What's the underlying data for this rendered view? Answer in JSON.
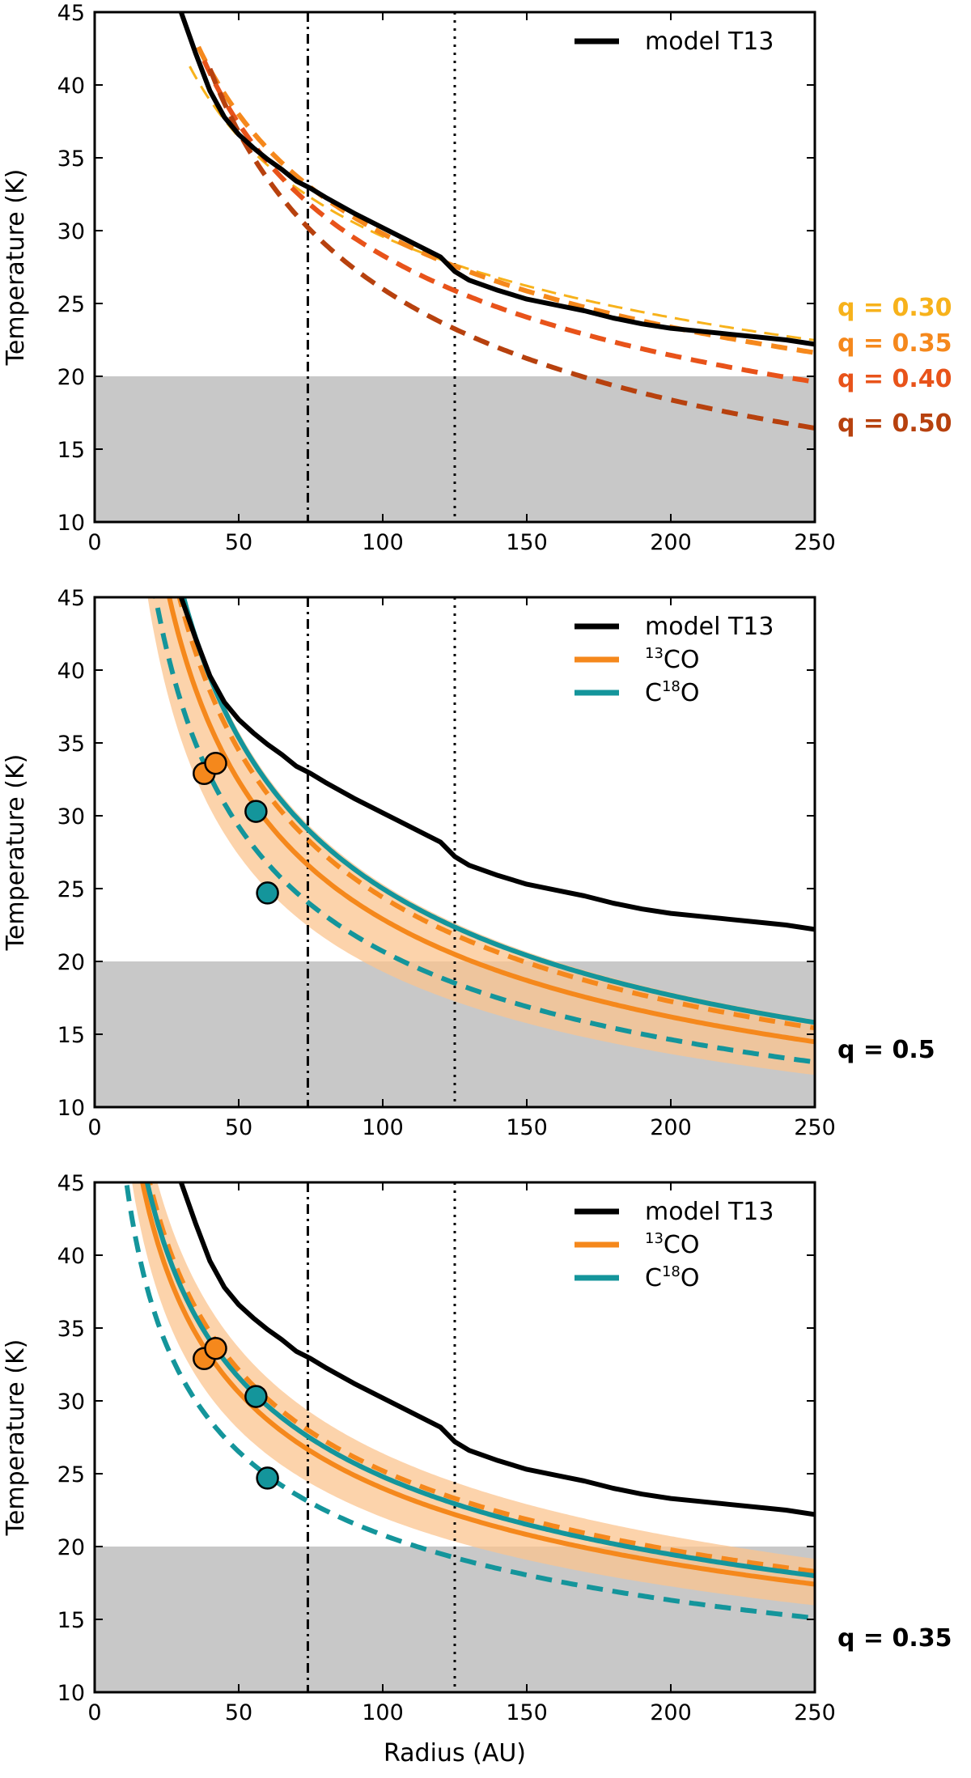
{
  "chart_data": [
    {
      "type": "line",
      "title": "",
      "xlabel": "",
      "ylabel": "Temperature (K)",
      "xlim": [
        0,
        250
      ],
      "ylim": [
        10,
        45
      ],
      "xticks": [
        0,
        50,
        100,
        150,
        200,
        250
      ],
      "yticks": [
        10,
        15,
        20,
        25,
        30,
        35,
        40,
        45
      ],
      "shaded_band": {
        "y_from": 10,
        "y_to": 20,
        "color": "#c8c8c8"
      },
      "vlines": [
        {
          "x": 74,
          "style": "dash-dot"
        },
        {
          "x": 125,
          "style": "dotted"
        }
      ],
      "model": {
        "name": "model T13",
        "color": "#000000",
        "x": [
          30,
          35,
          40,
          45,
          50,
          55,
          60,
          65,
          70,
          75,
          80,
          90,
          100,
          110,
          120,
          125,
          130,
          140,
          150,
          160,
          170,
          180,
          190,
          200,
          210,
          220,
          230,
          240,
          250
        ],
        "y": [
          45,
          42.2,
          39.6,
          37.8,
          36.6,
          35.7,
          34.9,
          34.2,
          33.4,
          32.9,
          32.3,
          31.2,
          30.2,
          29.2,
          28.2,
          27.2,
          26.6,
          25.9,
          25.3,
          24.9,
          24.5,
          24.0,
          23.6,
          23.3,
          23.1,
          22.9,
          22.7,
          22.5,
          22.2
        ]
      },
      "q_series": [
        {
          "name": "q = 0.30",
          "q": 0.3,
          "color": "#f7b21b",
          "T100": 29.6,
          "start": 33,
          "width": 3
        },
        {
          "name": "q = 0.35",
          "q": 0.35,
          "color": "#f5881c",
          "T100": 29.8,
          "start": 36,
          "width": 6
        },
        {
          "name": "q = 0.40",
          "q": 0.4,
          "color": "#e8531a",
          "T100": 28.3,
          "start": 38,
          "width": 6
        },
        {
          "name": "q = 0.50",
          "q": 0.5,
          "color": "#b7410e",
          "T100": 26.0,
          "start": 40,
          "width": 6
        }
      ],
      "legend": [
        "model T13"
      ],
      "legend_position": "top-right"
    },
    {
      "type": "line",
      "title": "",
      "xlabel": "",
      "ylabel": "Temperature (K)",
      "xlim": [
        0,
        250
      ],
      "ylim": [
        10,
        45
      ],
      "xticks": [
        0,
        50,
        100,
        150,
        200,
        250
      ],
      "yticks": [
        10,
        15,
        20,
        25,
        30,
        35,
        40,
        45
      ],
      "q_label": "q = 0.5",
      "q": 0.5,
      "legend": [
        {
          "name": "model T13",
          "iso_pre": "",
          "iso_sup": "",
          "iso_post": "model T13",
          "color": "#000000"
        },
        {
          "name": "13CO",
          "iso_pre": "",
          "iso_sup": "13",
          "iso_post": "CO",
          "color": "#f5881c"
        },
        {
          "name": "C18O",
          "iso_pre": "C",
          "iso_sup": "18",
          "iso_post": "O",
          "color": "#14959b"
        }
      ],
      "series": [
        {
          "name": "13CO fit",
          "color": "#f5881c",
          "style": "solid",
          "T100": 22.9
        },
        {
          "name": "13CO upper",
          "color": "#f5881c",
          "style": "dashed",
          "T100": 24.4
        },
        {
          "name": "C18O fit",
          "color": "#14959b",
          "style": "solid",
          "T100": 25.0
        },
        {
          "name": "C18O lower",
          "color": "#14959b",
          "style": "dashed",
          "T100": 20.7
        }
      ],
      "band": {
        "name": "13CO uncertainty",
        "color": "#fbc48f",
        "T100_low": 19.3,
        "T100_high": 25.3
      },
      "points": [
        {
          "x": 38,
          "y": 32.9,
          "color": "#f5881c"
        },
        {
          "x": 42,
          "y": 33.6,
          "color": "#f5881c"
        },
        {
          "x": 56,
          "y": 30.3,
          "color": "#14959b"
        },
        {
          "x": 60,
          "y": 24.7,
          "color": "#14959b"
        }
      ],
      "legend_position": "top-right"
    },
    {
      "type": "line",
      "title": "",
      "xlabel": "Radius (AU)",
      "ylabel": "Temperature (K)",
      "xlim": [
        0,
        250
      ],
      "ylim": [
        10,
        45
      ],
      "xticks": [
        0,
        50,
        100,
        150,
        200,
        250
      ],
      "yticks": [
        10,
        15,
        20,
        25,
        30,
        35,
        40,
        45
      ],
      "q_label": "q = 0.35",
      "q": 0.35,
      "legend": [
        {
          "name": "model T13",
          "iso_pre": "",
          "iso_sup": "",
          "iso_post": "model T13",
          "color": "#000000"
        },
        {
          "name": "13CO",
          "iso_pre": "",
          "iso_sup": "13",
          "iso_post": "CO",
          "color": "#f5881c"
        },
        {
          "name": "C18O",
          "iso_pre": "C",
          "iso_sup": "18",
          "iso_post": "O",
          "color": "#14959b"
        }
      ],
      "series": [
        {
          "name": "13CO fit",
          "color": "#f5881c",
          "style": "solid",
          "T100": 24.0
        },
        {
          "name": "13CO upper",
          "color": "#f5881c",
          "style": "dashed",
          "T100": 25.2
        },
        {
          "name": "C18O fit",
          "color": "#14959b",
          "style": "solid",
          "T100": 24.8
        },
        {
          "name": "C18O lower",
          "color": "#14959b",
          "style": "dashed",
          "T100": 20.8
        }
      ],
      "band": {
        "name": "13CO uncertainty",
        "color": "#fbc48f",
        "T100_low": 22.0,
        "T100_high": 26.4
      },
      "points": [
        {
          "x": 38,
          "y": 32.9,
          "color": "#f5881c"
        },
        {
          "x": 42,
          "y": 33.6,
          "color": "#f5881c"
        },
        {
          "x": 56,
          "y": 30.3,
          "color": "#14959b"
        },
        {
          "x": 60,
          "y": 24.7,
          "color": "#14959b"
        }
      ],
      "legend_position": "top-right"
    }
  ]
}
